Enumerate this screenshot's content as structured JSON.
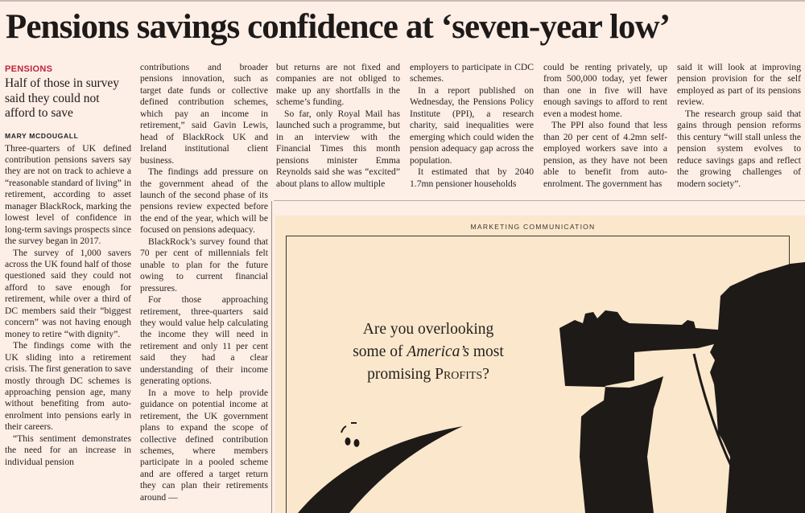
{
  "headline": "Pensions savings confidence at ‘seven-year low’",
  "kicker": "PENSIONS",
  "subhead": "Half of those in survey said they could not afford to save",
  "byline": "MARY MCDOUGALL",
  "columns": [
    {
      "paragraphs": [
        "Three-quarters of UK defined contribution pensions savers say they are not on track to achieve a “reasonable standard of living” in retirement, according to asset manager BlackRock, marking the lowest level of confidence in long-term savings prospects since the survey began in 2017.",
        "The survey of 1,000 savers across the UK found half of those questioned said they could not afford to save enough for retirement, while over a third of DC members said their “biggest concern” was not having enough money to retire “with dignity”.",
        "The findings come with the UK sliding into a retirement crisis. The first generation to save mostly through DC schemes is approaching pension age, many without benefiting from auto-enrolment into pensions early in their careers.",
        "“This sentiment demonstrates the need for an increase in individual pension"
      ]
    },
    {
      "paragraphs": [
        "contributions and broader pensions innovation, such as target date funds or collective defined contribution schemes, which pay an income in retirement,” said Gavin Lewis, head of BlackRock UK and Ireland institutional client business.",
        "The findings add pressure on the government ahead of the launch of the second phase of its pensions review expected before the end of the year, which will be focused on pensions adequacy.",
        "BlackRock’s survey found that 70 per cent of millennials felt unable to plan for the future owing to current financial pressures.",
        "For those approaching retirement, three-quarters said they would value help calculating the income they will need in retirement and only 11 per cent said they had a clear understanding of their income generating options.",
        "In a move to help provide guidance on potential income at retirement, the UK government plans to expand the scope of collective defined contribution schemes, where members participate in a pooled scheme and are offered a target return they can plan their retirements around —"
      ]
    },
    {
      "paragraphs": [
        "but returns are not fixed and companies are not obliged to make up any shortfalls in the scheme’s funding.",
        "So far, only Royal Mail has launched such a programme, but in an interview with the Financial Times this month pensions minister Emma Reynolds said she was “excited” about plans to allow multiple"
      ]
    },
    {
      "paragraphs": [
        "employers to participate in CDC schemes.",
        "In a report published on Wednesday, the Pensions Policy Institute (PPI), a research charity, said inequalities were emerging which could widen the pension adequacy gap across the population.",
        "It estimated that by 2040 1.7mn pensioner households"
      ]
    },
    {
      "paragraphs": [
        "could be renting privately, up from 500,000 today, yet fewer than one in five will have enough savings to afford to rent even a modest home.",
        "The PPI also found that less than 20 per cent of 4.2mn self-employed workers save into a pension, as they have not been able to benefit from auto-enrolment. The government has"
      ]
    },
    {
      "paragraphs": [
        "said it will look at improving pension provision for the self employed as part of its pensions review.",
        "The research group said that gains through pension reforms this century “will stall unless the pension system evolves to reduce savings gaps and reflect the growing challenges of modern society”."
      ]
    }
  ],
  "ad": {
    "label": "MARKETING COMMUNICATION",
    "line1": "Are you overlooking",
    "line2_pre": "some of ",
    "line2_italic": "America’s",
    "line2_post": " most",
    "line3_pre": "promising ",
    "line3_smallcaps": "Profits",
    "line3_post": "?",
    "colors": {
      "background": "#fbe8cc",
      "ink": "#1e1a18"
    }
  },
  "colors": {
    "page": "#fdeee6",
    "kicker": "#c0243a"
  }
}
